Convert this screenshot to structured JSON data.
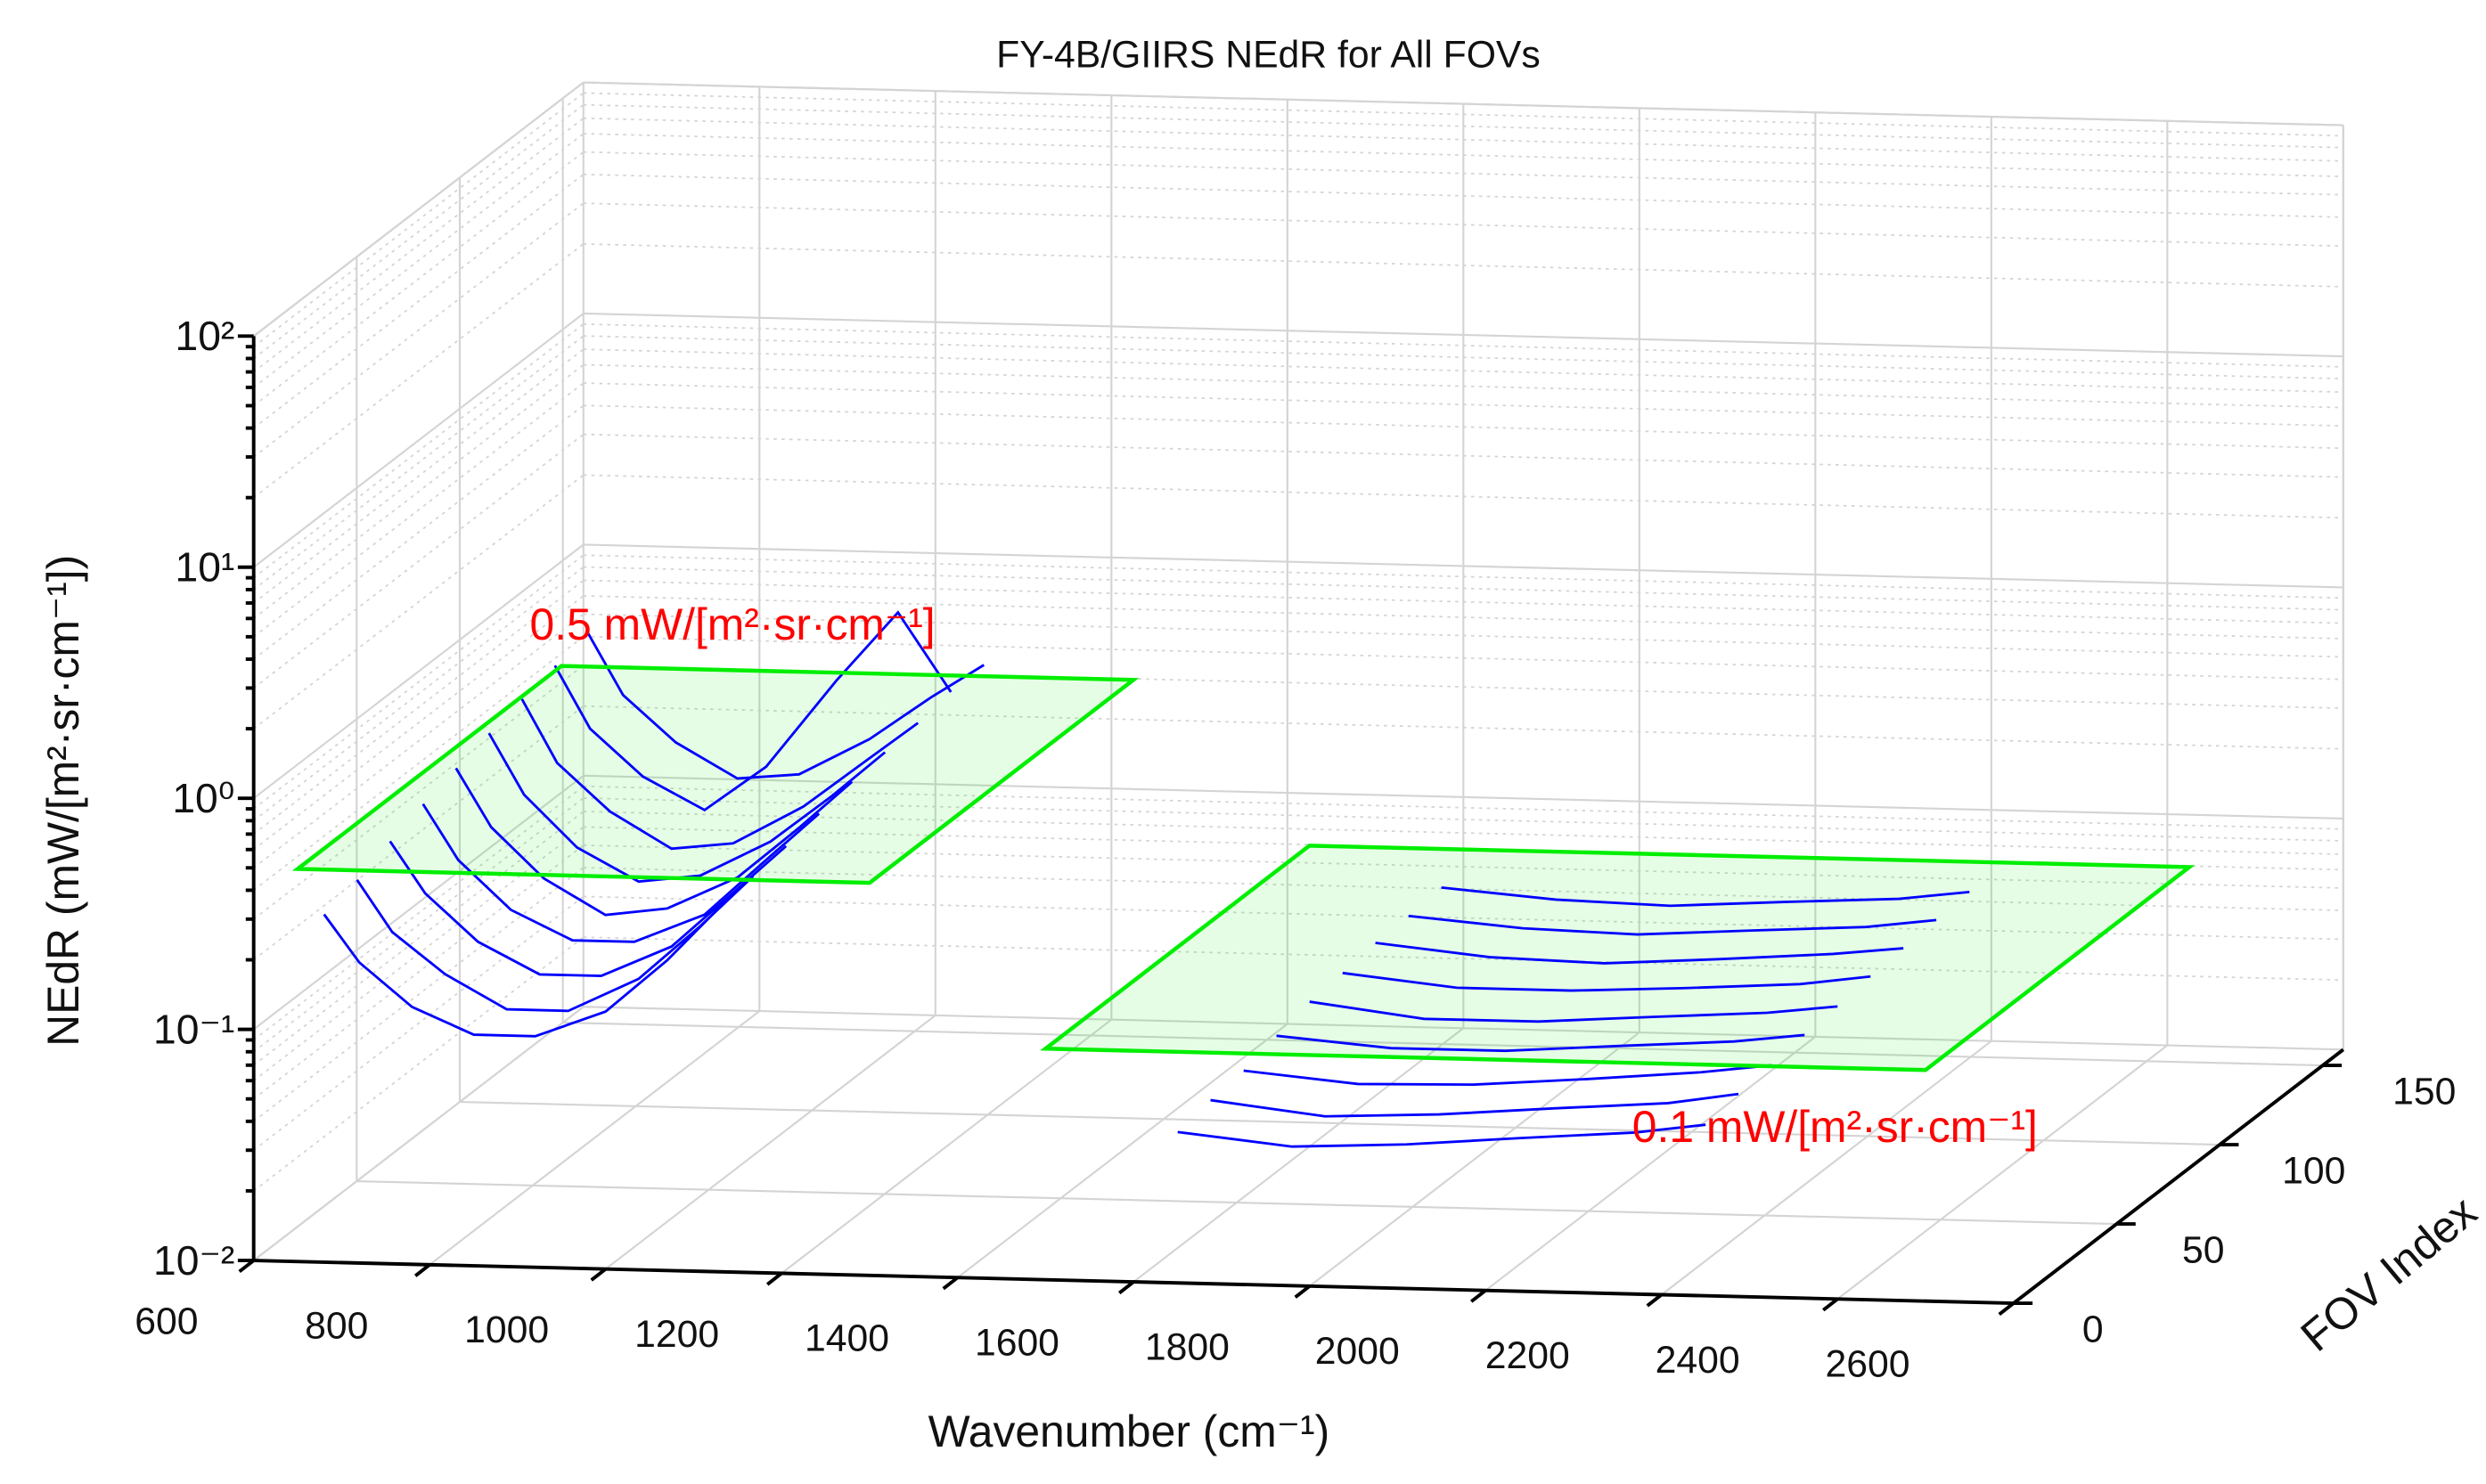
{
  "chart_data": {
    "type": "line3d",
    "title": "FY-4B/GIIRS NEdR for All FOVs",
    "xlabel": "Wavenumber (cm⁻¹)",
    "ylabel": "FOV Index",
    "zlabel": "NEdR (mW/[m²·sr·cm⁻¹])",
    "xlim": [
      600,
      2600
    ],
    "xticks": [
      600,
      800,
      1000,
      1200,
      1400,
      1600,
      1800,
      2000,
      2200,
      2400,
      2600
    ],
    "ylim": [
      0,
      160
    ],
    "yticks": [
      0,
      50,
      100,
      150
    ],
    "zlim": [
      0.01,
      100
    ],
    "zscale": "log",
    "zticks": [
      {
        "value": 0.01,
        "label": "10⁻²"
      },
      {
        "value": 0.1,
        "label": "10⁻¹"
      },
      {
        "value": 1,
        "label": "10⁰"
      },
      {
        "value": 10,
        "label": "10¹"
      },
      {
        "value": 100,
        "label": "10²"
      }
    ],
    "grid": true,
    "color": "#0000ff",
    "planes": [
      {
        "value": 0.5,
        "xlim": [
          650,
          1300
        ],
        "fovlim": [
          0,
          128
        ],
        "label": "0.5 mW/[m²·sr·cm⁻¹]",
        "color": "#00ee00"
      },
      {
        "value": 0.1,
        "xlim": [
          1500,
          2500
        ],
        "fovlim": [
          0,
          128
        ],
        "label": "0.1 mW/[m²·sr·cm⁻¹]",
        "color": "#00ee00"
      }
    ],
    "x": [
      680,
      720,
      780,
      850,
      920,
      1000,
      1070,
      1130,
      1400,
      1650,
      1780,
      1910,
      2040,
      2170,
      2250
    ],
    "series": [
      {
        "fov": 0,
        "values": [
          0.32,
          0.2,
          0.13,
          0.1,
          0.1,
          0.13,
          0.22,
          0.38,
          null,
          0.045,
          0.04,
          0.042,
          0.046,
          0.05,
          0.055
        ]
      },
      {
        "fov": 16,
        "values": [
          0.35,
          0.21,
          0.14,
          0.1,
          0.1,
          0.14,
          0.24,
          0.4,
          null,
          0.048,
          0.042,
          0.044,
          0.048,
          0.052,
          0.058
        ]
      },
      {
        "fov": 32,
        "values": [
          0.4,
          0.24,
          0.15,
          0.11,
          0.11,
          0.15,
          0.26,
          0.42,
          null,
          0.05,
          0.045,
          0.046,
          0.05,
          0.055,
          0.06
        ]
      },
      {
        "fov": 48,
        "values": [
          0.45,
          0.26,
          0.16,
          0.12,
          0.12,
          0.16,
          0.28,
          0.45,
          null,
          0.055,
          0.05,
          0.05,
          0.054,
          0.058,
          0.063
        ]
      },
      {
        "fov": 64,
        "values": [
          0.5,
          0.28,
          0.17,
          0.12,
          0.13,
          0.18,
          0.3,
          0.48,
          null,
          0.06,
          0.052,
          0.052,
          0.056,
          0.06,
          0.065
        ]
      },
      {
        "fov": 80,
        "values": [
          0.55,
          0.3,
          0.18,
          0.13,
          0.14,
          0.2,
          0.32,
          0.5,
          null,
          0.062,
          0.055,
          0.055,
          0.058,
          0.062,
          0.068
        ]
      },
      {
        "fov": 96,
        "values": [
          0.6,
          0.32,
          0.2,
          0.14,
          0.15,
          0.22,
          0.35,
          0.52,
          null,
          0.065,
          0.058,
          0.056,
          0.06,
          0.065,
          0.07
        ]
      },
      {
        "fov": 112,
        "values": [
          0.65,
          0.35,
          0.22,
          0.16,
          0.25,
          0.6,
          1.2,
          0.55,
          null,
          0.066,
          0.06,
          0.058,
          0.062,
          0.066,
          0.072
        ]
      },
      {
        "fov": 128,
        "values": [
          0.7,
          0.38,
          0.24,
          0.17,
          0.18,
          0.26,
          0.4,
          0.56,
          null,
          0.068,
          0.062,
          0.06,
          0.064,
          0.068,
          0.074
        ]
      }
    ]
  }
}
